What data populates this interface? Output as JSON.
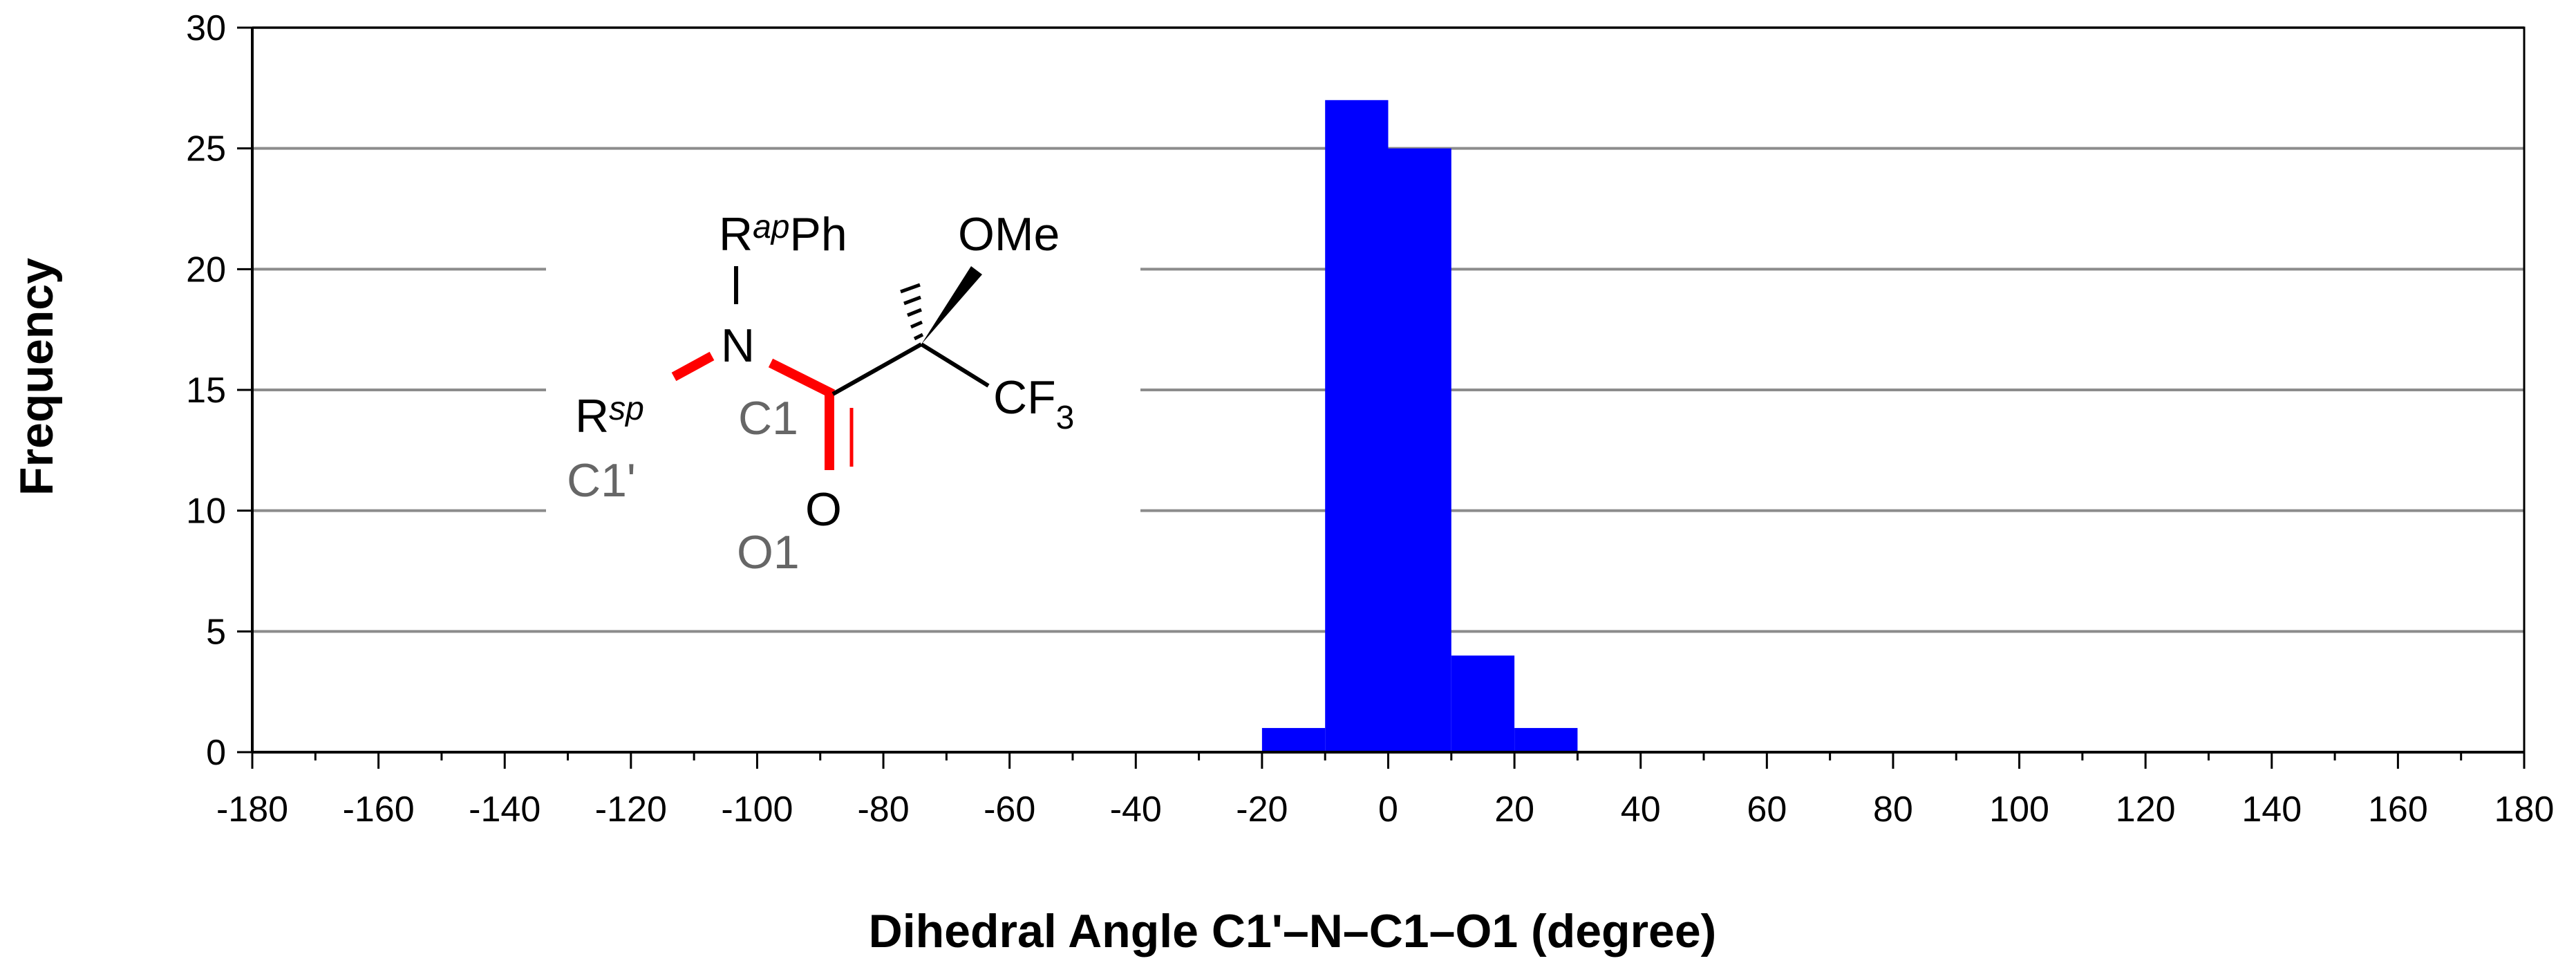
{
  "chart_data": {
    "type": "bar",
    "xlabel": "Dihedral Angle C1'–N–C1–O1 (degree)",
    "ylabel": "Frequency",
    "xlim": [
      -180,
      180
    ],
    "ylim": [
      0,
      30
    ],
    "x_ticks": [
      -180,
      -160,
      -140,
      -120,
      -100,
      -80,
      -60,
      -40,
      -20,
      0,
      20,
      40,
      60,
      80,
      100,
      120,
      140,
      160,
      180
    ],
    "y_ticks": [
      0,
      5,
      10,
      15,
      20,
      25,
      30
    ],
    "bin_width": 10,
    "bins": [
      {
        "start": -20,
        "end": -10,
        "value": 1
      },
      {
        "start": -10,
        "end": 0,
        "value": 27
      },
      {
        "start": 0,
        "end": 10,
        "value": 25
      },
      {
        "start": 10,
        "end": 20,
        "value": 4
      },
      {
        "start": 20,
        "end": 30,
        "value": 1
      }
    ],
    "grid": true,
    "bar_color": "#0000ff"
  },
  "structure": {
    "rap": "R",
    "rap_sup": "ap",
    "ph": "Ph",
    "ome": "OMe",
    "n": "N",
    "rsp": "R",
    "rsp_sup": "sp",
    "cf": "CF",
    "cf_sub": "3",
    "o": "O",
    "label_c1": "C1",
    "label_c1p": "C1'",
    "label_o1": "O1",
    "highlight_color": "#ff0000"
  }
}
